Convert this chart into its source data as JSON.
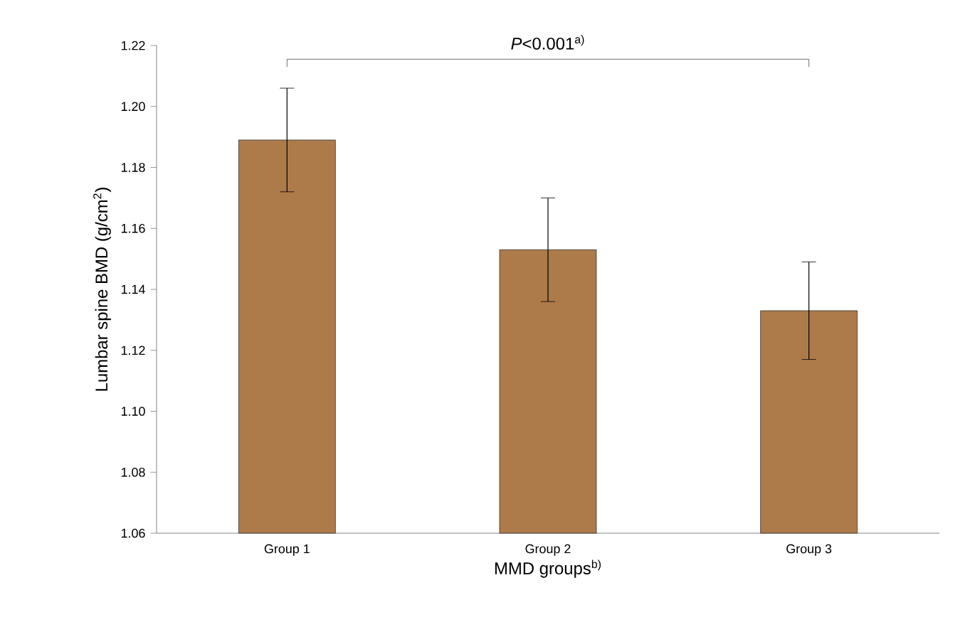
{
  "chart_data": {
    "type": "bar",
    "xlabel": "MMD groups$^{b)}$",
    "ylabel": "Lumbar spine BMD (g/cm$^{2}$)",
    "categories": [
      "Group 1",
      "Group 2",
      "Group 3"
    ],
    "values": [
      1.189,
      1.153,
      1.133
    ],
    "errors": [
      0.017,
      0.017,
      0.016
    ],
    "color": "#ad7a4a",
    "ylim": [
      1.06,
      1.22
    ],
    "yticks": [
      1.06,
      1.08,
      {
        "value": 1.1,
        "label": "1.10"
      },
      1.12,
      1.14,
      1.16,
      1.18,
      {
        "value": 1.2,
        "label": "1.20"
      },
      1.22
    ],
    "annotations": [
      "*P*<0.001$^{a)}$"
    ],
    "grid": false
  }
}
